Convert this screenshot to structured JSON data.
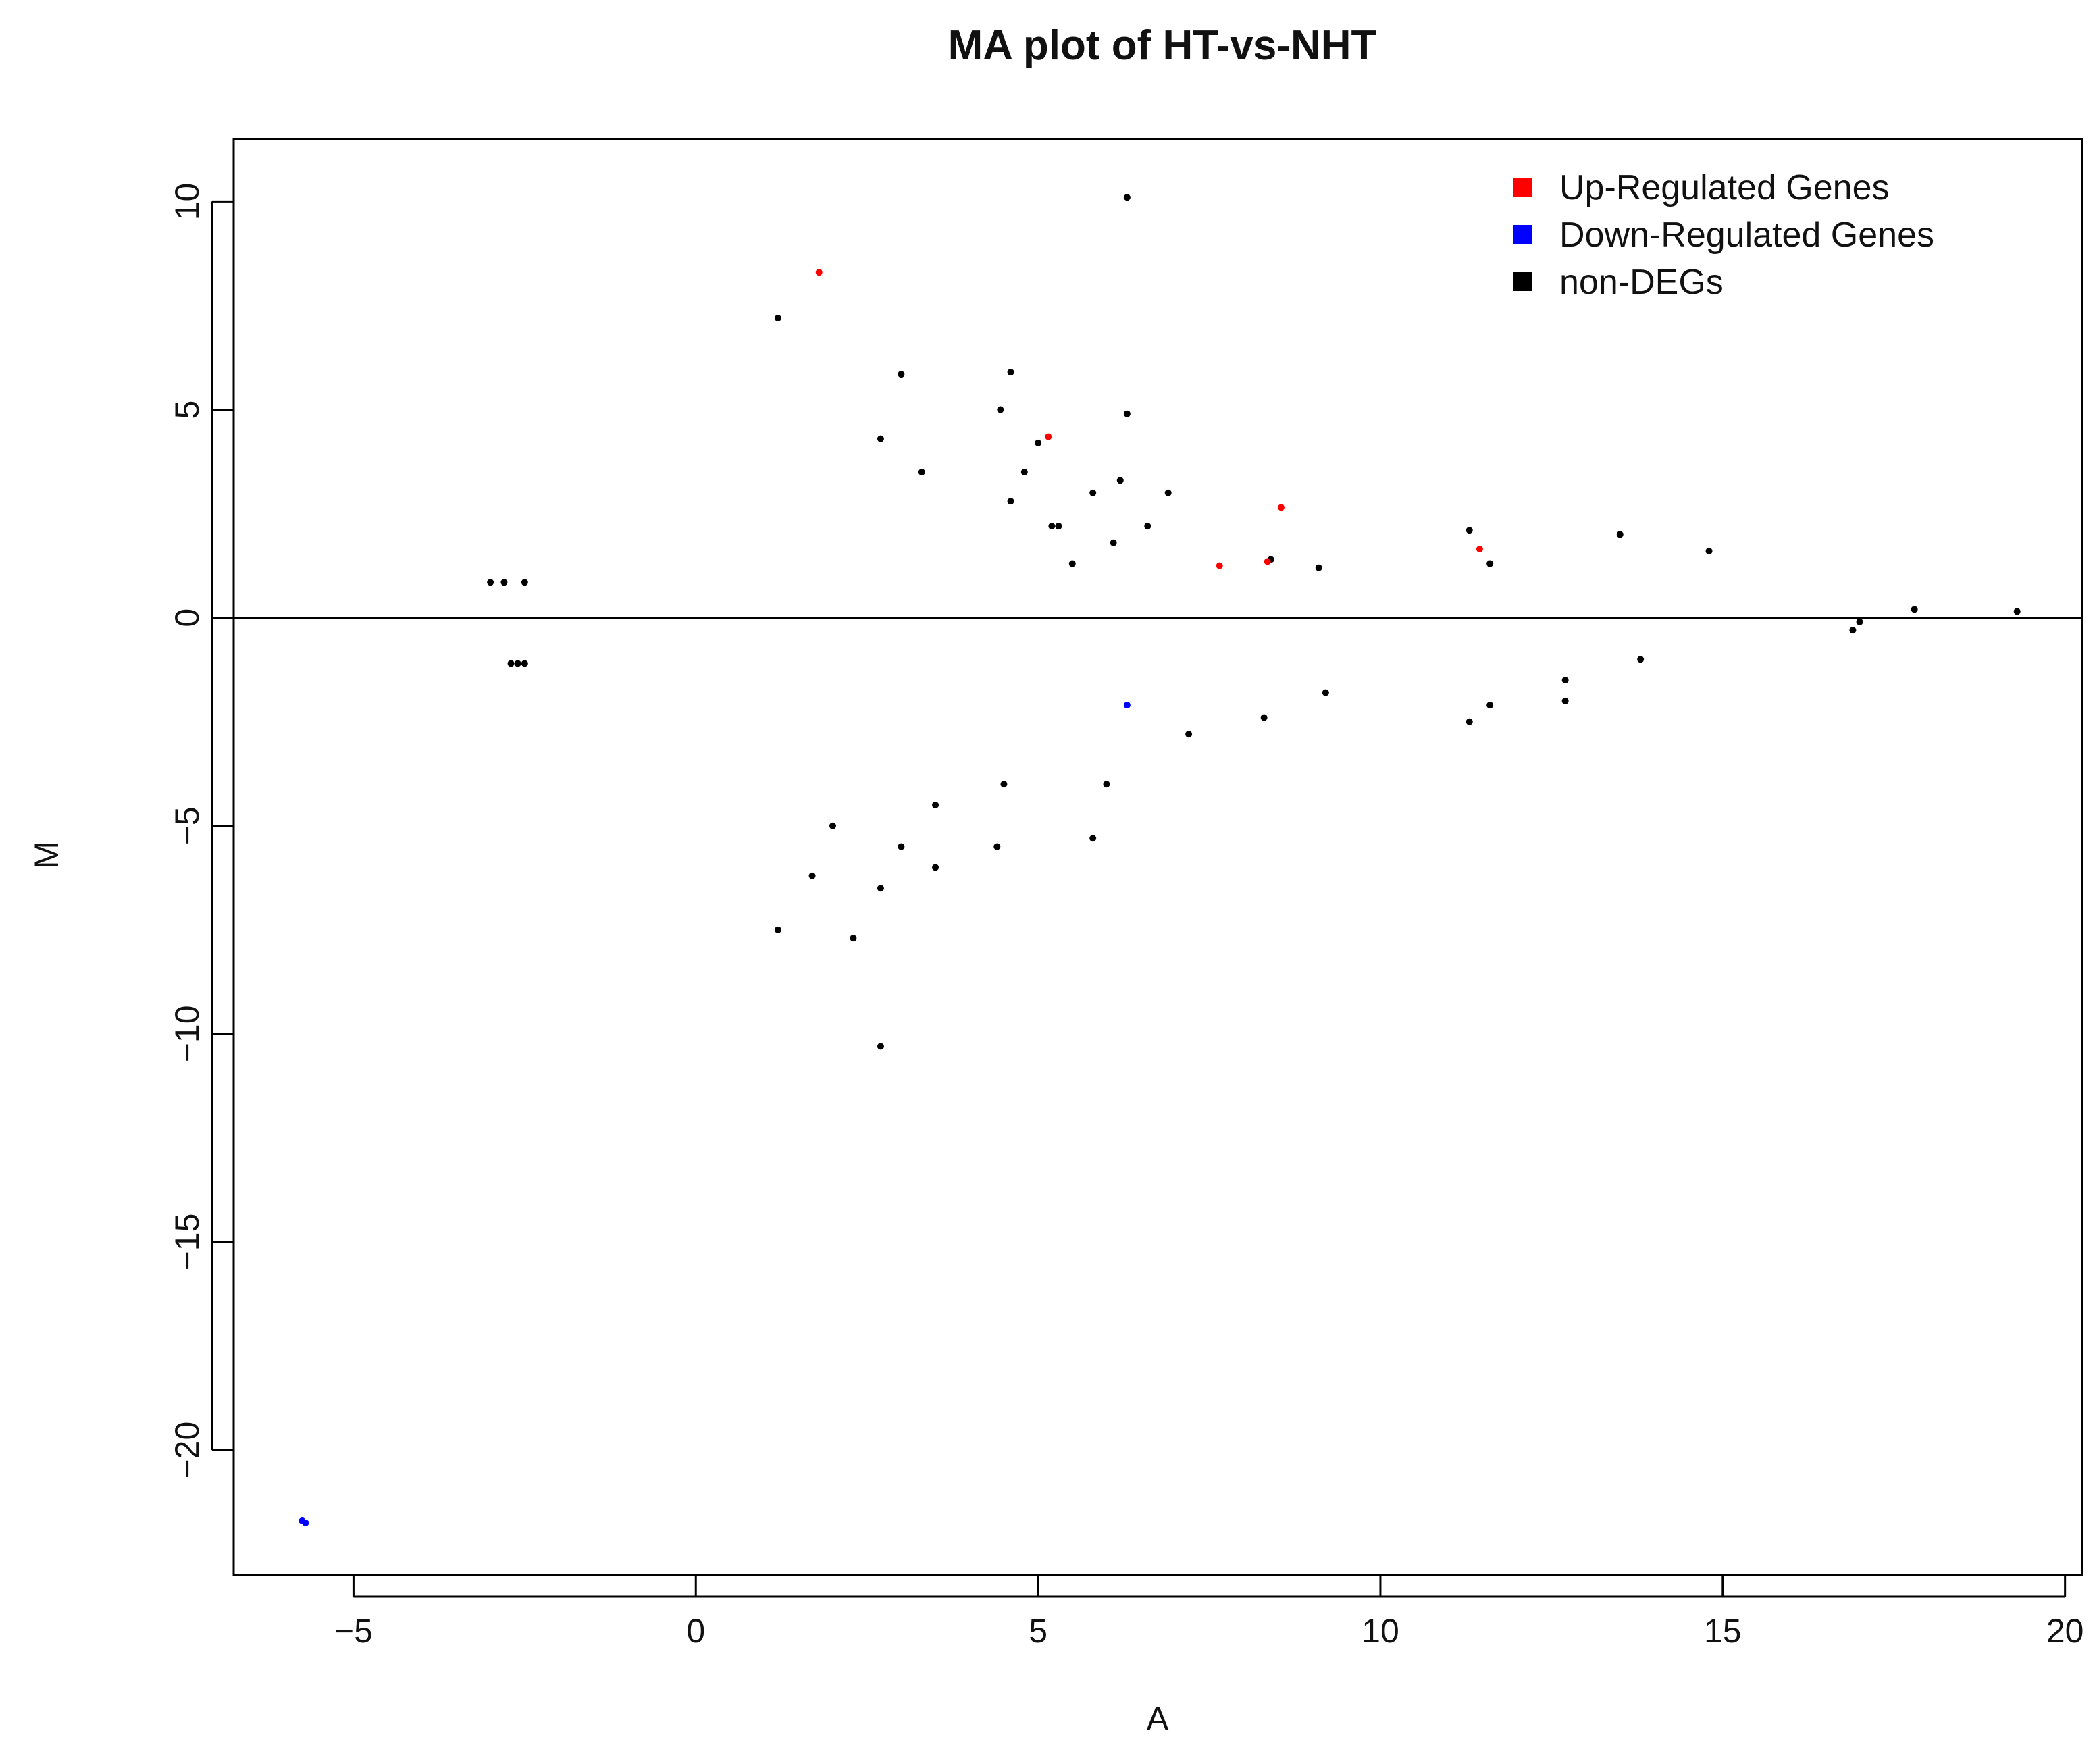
{
  "chart_data": {
    "type": "scatter",
    "title": "MA plot of HT-vs-NHT",
    "xlabel": "A",
    "ylabel": "M",
    "xlim": [
      -6.75,
      20.25
    ],
    "ylim": [
      -23.0,
      11.5
    ],
    "x_ticks": [
      -5,
      0,
      5,
      10,
      15,
      20
    ],
    "x_tick_labels": [
      "−5",
      "0",
      "5",
      "10",
      "15",
      "20"
    ],
    "y_ticks": [
      -20,
      -15,
      -10,
      -5,
      0,
      5,
      10
    ],
    "y_tick_labels": [
      "−20",
      "−15",
      "−10",
      "−5",
      "0",
      "5",
      "10"
    ],
    "reference_line_y": 0,
    "grid": false,
    "legend_position": "top-right",
    "colors": {
      "Up-Regulated Genes": "#ff0000",
      "Down-Regulated Genes": "#0000ff",
      "non-DEGs": "#000000"
    },
    "series": [
      {
        "name": "Up-Regulated Genes",
        "color": "#ff0000",
        "points": [
          [
            1.8,
            8.3
          ],
          [
            5.15,
            4.35
          ],
          [
            8.55,
            2.65
          ],
          [
            8.35,
            1.35
          ],
          [
            7.65,
            1.25
          ],
          [
            11.45,
            1.65
          ]
        ]
      },
      {
        "name": "Down-Regulated Genes",
        "color": "#0000ff",
        "points": [
          [
            -5.75,
            -21.7
          ],
          [
            -5.7,
            -21.75
          ],
          [
            6.3,
            -2.1
          ]
        ]
      },
      {
        "name": "non-DEGs",
        "color": "#000000",
        "points": [
          [
            6.3,
            10.1
          ],
          [
            1.2,
            7.2
          ],
          [
            3.0,
            5.85
          ],
          [
            4.6,
            5.9
          ],
          [
            4.45,
            5.0
          ],
          [
            6.3,
            4.9
          ],
          [
            2.7,
            4.3
          ],
          [
            5.0,
            4.2
          ],
          [
            6.2,
            3.3
          ],
          [
            5.8,
            3.0
          ],
          [
            6.9,
            3.0
          ],
          [
            3.3,
            3.5
          ],
          [
            4.8,
            3.5
          ],
          [
            4.6,
            2.8
          ],
          [
            5.2,
            2.2
          ],
          [
            5.3,
            2.2
          ],
          [
            5.5,
            1.3
          ],
          [
            6.1,
            1.8
          ],
          [
            6.6,
            2.2
          ],
          [
            8.4,
            1.4
          ],
          [
            9.1,
            1.2
          ],
          [
            11.3,
            2.1
          ],
          [
            13.5,
            2.0
          ],
          [
            14.8,
            1.6
          ],
          [
            11.6,
            1.3
          ],
          [
            17.8,
            0.2
          ],
          [
            19.3,
            0.15
          ],
          [
            17.0,
            -0.1
          ],
          [
            16.9,
            -0.3
          ],
          [
            12.7,
            -1.5
          ],
          [
            12.7,
            -2.0
          ],
          [
            11.6,
            -2.1
          ],
          [
            11.3,
            -2.5
          ],
          [
            13.8,
            -1.0
          ],
          [
            7.2,
            -2.8
          ],
          [
            8.3,
            -2.4
          ],
          [
            9.2,
            -1.8
          ],
          [
            5.8,
            -5.3
          ],
          [
            6.0,
            -4.0
          ],
          [
            4.4,
            -5.5
          ],
          [
            4.5,
            -4.0
          ],
          [
            3.5,
            -4.5
          ],
          [
            3.5,
            -6.0
          ],
          [
            3.0,
            -5.5
          ],
          [
            2.7,
            -6.5
          ],
          [
            2.7,
            -10.3
          ],
          [
            2.3,
            -7.7
          ],
          [
            1.7,
            -6.2
          ],
          [
            2.0,
            -5.0
          ],
          [
            1.2,
            -7.5
          ],
          [
            -2.5,
            0.85
          ],
          [
            -2.8,
            0.85
          ],
          [
            -3.0,
            0.85
          ],
          [
            -2.6,
            -1.1
          ],
          [
            -2.7,
            -1.1
          ],
          [
            -2.5,
            -1.1
          ]
        ]
      }
    ]
  }
}
